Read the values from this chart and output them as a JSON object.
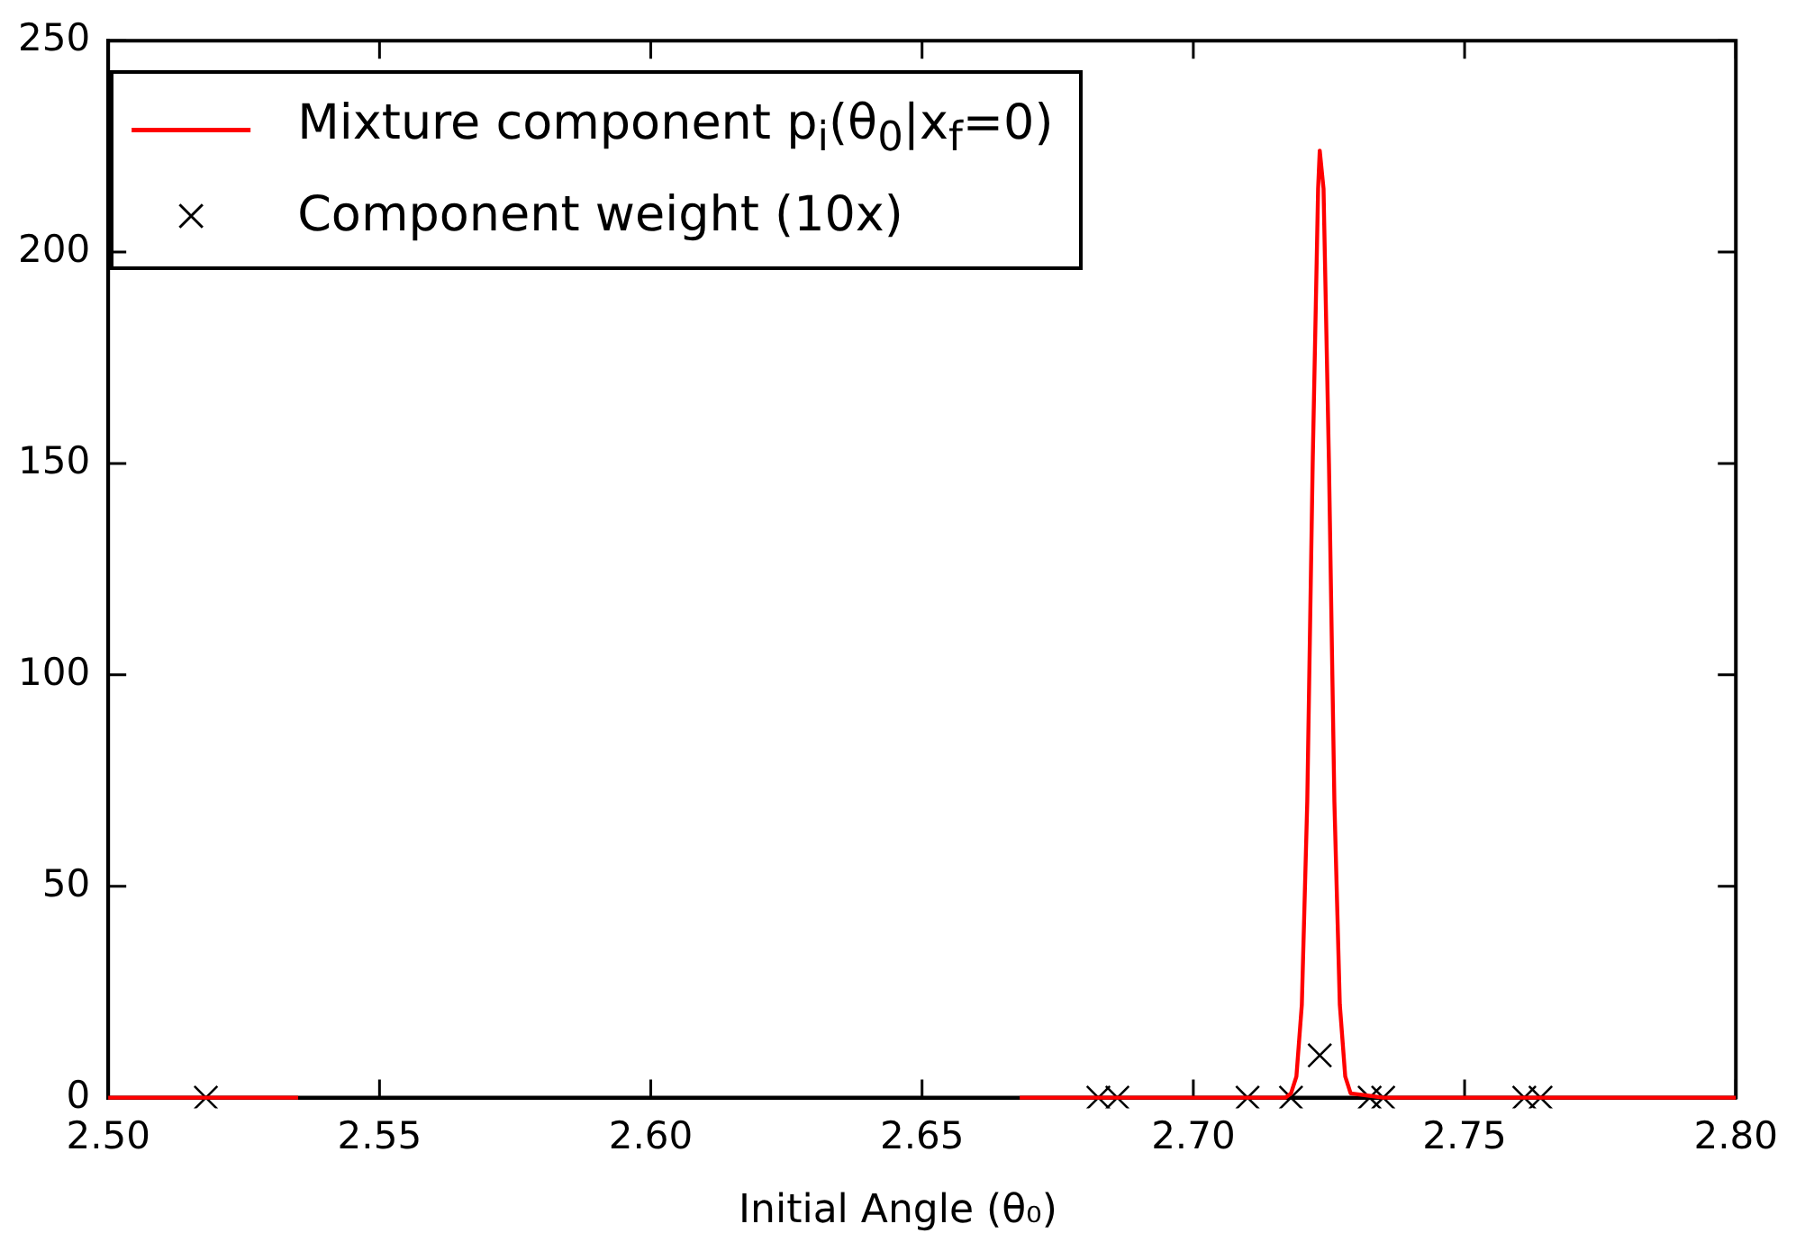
{
  "chart_data": {
    "type": "line",
    "xlabel": "Initial Angle (θ₀)",
    "xlim": [
      2.5,
      2.8
    ],
    "xticks": [
      {
        "value": 2.5,
        "label": "2.50"
      },
      2.55,
      {
        "value": 2.6,
        "label": "2.60"
      },
      2.65,
      {
        "value": 2.7,
        "label": "2.70"
      },
      2.75,
      {
        "value": 2.8,
        "label": "2.80"
      }
    ],
    "ylim": [
      0,
      250
    ],
    "yticks": [
      0,
      50,
      100,
      150,
      200,
      250
    ],
    "legend": "top left",
    "series": [
      {
        "name": "Mixture component p$_{i}$(θ$_{0}$|x$_{f}$=0)",
        "color": "#ff0000",
        "marker": "none",
        "x": [
          2.5,
          2.535,
          2.6,
          2.668,
          2.71,
          2.717,
          2.718,
          2.719,
          2.72,
          2.721,
          2.722,
          2.723,
          2.7233,
          2.724,
          2.725,
          2.726,
          2.727,
          2.728,
          2.729,
          2.735,
          2.8
        ],
        "values": [
          0,
          0,
          null,
          0,
          0,
          0,
          1,
          5,
          22,
          70,
          150,
          215,
          224,
          215,
          150,
          70,
          22,
          5,
          1,
          0,
          0
        ]
      },
      {
        "name": "Component weight (10x)",
        "type": "scatter",
        "color": "#000000",
        "marker": "cross",
        "x": [
          2.518,
          2.6825,
          2.686,
          2.71,
          2.718,
          2.7233,
          2.7325,
          2.735,
          2.761,
          2.764
        ],
        "values": [
          0,
          0,
          0,
          0,
          0,
          10,
          0,
          0,
          0,
          0
        ]
      }
    ]
  }
}
